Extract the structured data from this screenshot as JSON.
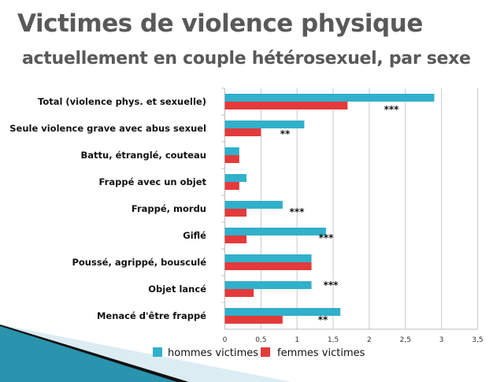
{
  "title": "Victimes de violence physique",
  "subtitle": "actuellement en couple hétérosexuel, par sexe",
  "colors": {
    "hommes": "#31b0cb",
    "femmes": "#e43a3b"
  },
  "chart_data": {
    "type": "bar",
    "orientation": "horizontal",
    "categories": [
      "Total (violence phys. et sexuelle)",
      "Seule violence grave avec abus sexuel",
      "Battu, étranglé, couteau",
      "Frappé avec un objet",
      "Frappé, mordu",
      "Giflé",
      "Poussé, agrippé, bousculé",
      "Objet lancé",
      "Menacé d'être frappé"
    ],
    "series": [
      {
        "name": "hommes victimes",
        "values": [
          2.9,
          1.1,
          0.2,
          0.3,
          0.8,
          1.4,
          1.2,
          1.2,
          1.6
        ]
      },
      {
        "name": "femmes victimes",
        "values": [
          1.7,
          0.5,
          0.2,
          0.2,
          0.3,
          0.3,
          1.2,
          0.4,
          0.8
        ]
      }
    ],
    "significance": [
      "***",
      "**",
      "",
      "",
      "***",
      "***",
      "",
      "***",
      "**"
    ],
    "xlim": [
      0,
      3.5
    ],
    "xticks": [
      "0",
      "0,5",
      "1",
      "1,5",
      "2",
      "2,5",
      "3",
      "3,5"
    ],
    "grid": true,
    "legend": "bottom"
  }
}
